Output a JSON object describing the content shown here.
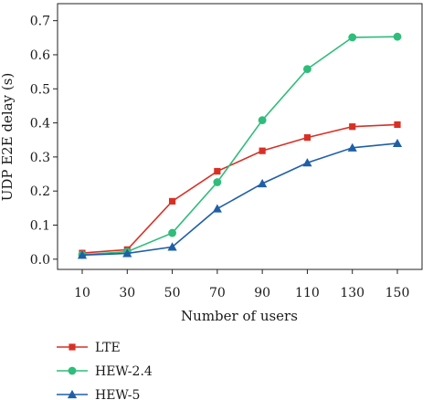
{
  "chart_data": {
    "type": "line",
    "title": "",
    "xlabel": "Number of users",
    "ylabel": "UDP E2E delay (s)",
    "x": [
      10,
      30,
      50,
      70,
      90,
      110,
      130,
      150
    ],
    "x_tick_labels": [
      "10",
      "30",
      "50",
      "70",
      "90",
      "110",
      "130",
      "150"
    ],
    "ylim": [
      -0.03,
      0.75
    ],
    "y_ticks": [
      0.0,
      0.1,
      0.2,
      0.3,
      0.4,
      0.5,
      0.6,
      0.7
    ],
    "y_tick_labels": [
      "0.0",
      "0.1",
      "0.2",
      "0.3",
      "0.4",
      "0.5",
      "0.6",
      "0.7"
    ],
    "grid": false,
    "legend_position": "below-left",
    "series": [
      {
        "name": "LTE",
        "color": "#d93025",
        "marker": "square",
        "values": [
          0.018,
          0.028,
          0.17,
          0.258,
          0.318,
          0.357,
          0.389,
          0.395
        ]
      },
      {
        "name": "HEW-2.4",
        "color": "#2ebd7a",
        "marker": "circle",
        "values": [
          0.013,
          0.022,
          0.077,
          0.226,
          0.408,
          0.558,
          0.651,
          0.653
        ]
      },
      {
        "name": "HEW-5",
        "color": "#1f5fa8",
        "marker": "triangle",
        "values": [
          0.012,
          0.017,
          0.036,
          0.148,
          0.222,
          0.283,
          0.327,
          0.34
        ]
      }
    ]
  }
}
